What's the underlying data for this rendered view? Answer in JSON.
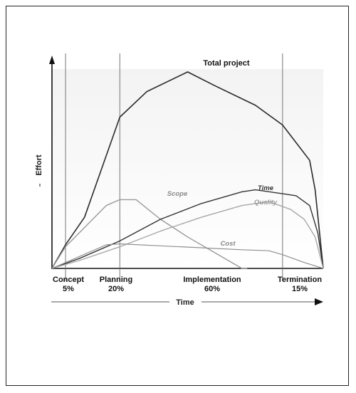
{
  "chart_data": {
    "type": "line",
    "ylabel": "Effort",
    "xlabel": "Time",
    "x": [
      0,
      5,
      25,
      85,
      100
    ],
    "xlim": [
      0,
      100
    ],
    "ylim": [
      0,
      100
    ],
    "phases": [
      {
        "name": "Concept",
        "percent": "5%",
        "start": 0,
        "end": 5
      },
      {
        "name": "Planning",
        "percent": "20%",
        "start": 5,
        "end": 25
      },
      {
        "name": "Implementation",
        "percent": "60%",
        "start": 25,
        "end": 85
      },
      {
        "name": "Termination",
        "percent": "15%",
        "start": 85,
        "end": 100
      }
    ],
    "series": [
      {
        "name": "Total project",
        "color": "#2a2a2a",
        "points": [
          [
            0,
            0
          ],
          [
            5,
            12
          ],
          [
            12,
            26
          ],
          [
            25,
            77
          ],
          [
            35,
            90
          ],
          [
            50,
            100
          ],
          [
            60,
            93
          ],
          [
            75,
            83
          ],
          [
            85,
            73
          ],
          [
            90,
            64
          ],
          [
            95,
            55
          ],
          [
            97,
            40
          ],
          [
            100,
            0
          ]
        ]
      },
      {
        "name": "Scope",
        "color": "#9a9a9a",
        "points": [
          [
            0,
            0
          ],
          [
            5,
            11
          ],
          [
            20,
            32
          ],
          [
            25,
            35
          ],
          [
            31,
            35
          ],
          [
            40,
            25
          ],
          [
            50,
            16
          ],
          [
            60,
            8
          ],
          [
            70,
            0
          ],
          [
            72,
            0
          ]
        ]
      },
      {
        "name": "Time",
        "color": "#333333",
        "points": [
          [
            0,
            0
          ],
          [
            10,
            5
          ],
          [
            25,
            14
          ],
          [
            40,
            25
          ],
          [
            55,
            33
          ],
          [
            70,
            39
          ],
          [
            75,
            40
          ],
          [
            85,
            38
          ],
          [
            90,
            37
          ],
          [
            95,
            32
          ],
          [
            98,
            18
          ],
          [
            100,
            0
          ]
        ]
      },
      {
        "name": "Quality",
        "color": "#a8a8a8",
        "points": [
          [
            0,
            0
          ],
          [
            10,
            4
          ],
          [
            25,
            11
          ],
          [
            40,
            19
          ],
          [
            55,
            26
          ],
          [
            70,
            32
          ],
          [
            80,
            34
          ],
          [
            88,
            30
          ],
          [
            93,
            25
          ],
          [
            97,
            16
          ],
          [
            100,
            0
          ]
        ]
      },
      {
        "name": "Cost",
        "color": "#8f8f8f",
        "points": [
          [
            0,
            0
          ],
          [
            10,
            6
          ],
          [
            20,
            12
          ],
          [
            25,
            12.5
          ],
          [
            40,
            11.5
          ],
          [
            55,
            10.5
          ],
          [
            70,
            9.5
          ],
          [
            80,
            9
          ],
          [
            85,
            7
          ],
          [
            93,
            3
          ],
          [
            100,
            0
          ]
        ]
      }
    ]
  }
}
